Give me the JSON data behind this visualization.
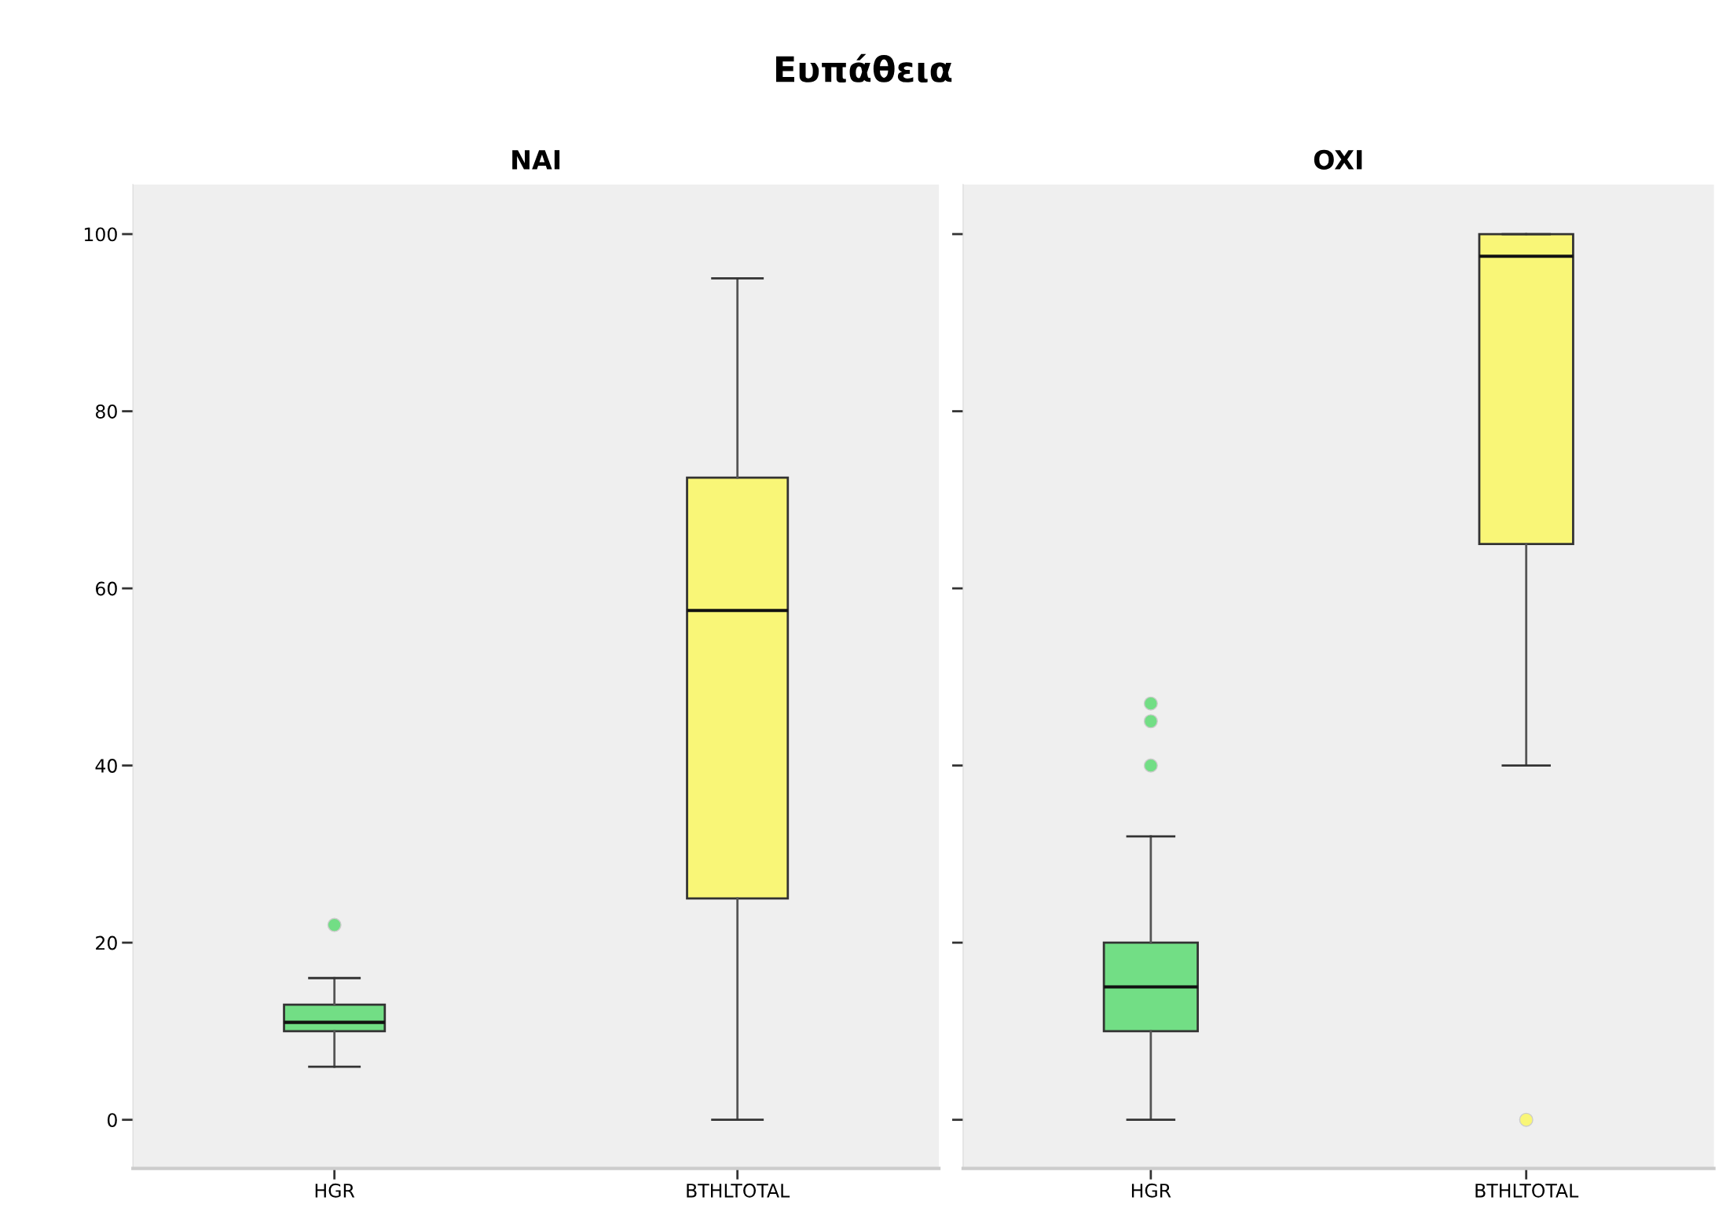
{
  "chart_data": [
    {
      "type": "box",
      "title": "Ευπάθεια",
      "subtitle": "NAI",
      "categories": [
        "HGR",
        "BTHLTOTAL"
      ],
      "colors": [
        "#72de85",
        "#f9f677"
      ],
      "boxes": [
        {
          "low": 6,
          "q1": 10,
          "median": 11,
          "q3": 13,
          "high": 16,
          "outliers": [
            22
          ]
        },
        {
          "low": 0,
          "q1": 25,
          "median": 57.5,
          "q3": 72.5,
          "high": 95
        }
      ],
      "ylim": [
        -5.5,
        105.6
      ],
      "yticks": [
        0,
        20,
        40,
        60,
        80,
        100
      ],
      "grid": false
    },
    {
      "type": "box",
      "subtitle": "OXI",
      "categories": [
        "HGR",
        "BTHLTOTAL"
      ],
      "colors": [
        "#72de85",
        "#f9f677"
      ],
      "boxes": [
        {
          "low": 0,
          "q1": 10,
          "median": 15,
          "q3": 20,
          "high": 32,
          "outliers": [
            40,
            45,
            47
          ]
        },
        {
          "low": 40,
          "q1": 65,
          "median": 97.5,
          "q3": 100,
          "high": 100,
          "outliers": [
            0
          ]
        }
      ],
      "ylim": [
        -5.5,
        105.6
      ],
      "yticks": [
        0,
        20,
        40,
        60,
        80,
        100
      ],
      "tick_labels": "x",
      "grid": false
    }
  ]
}
